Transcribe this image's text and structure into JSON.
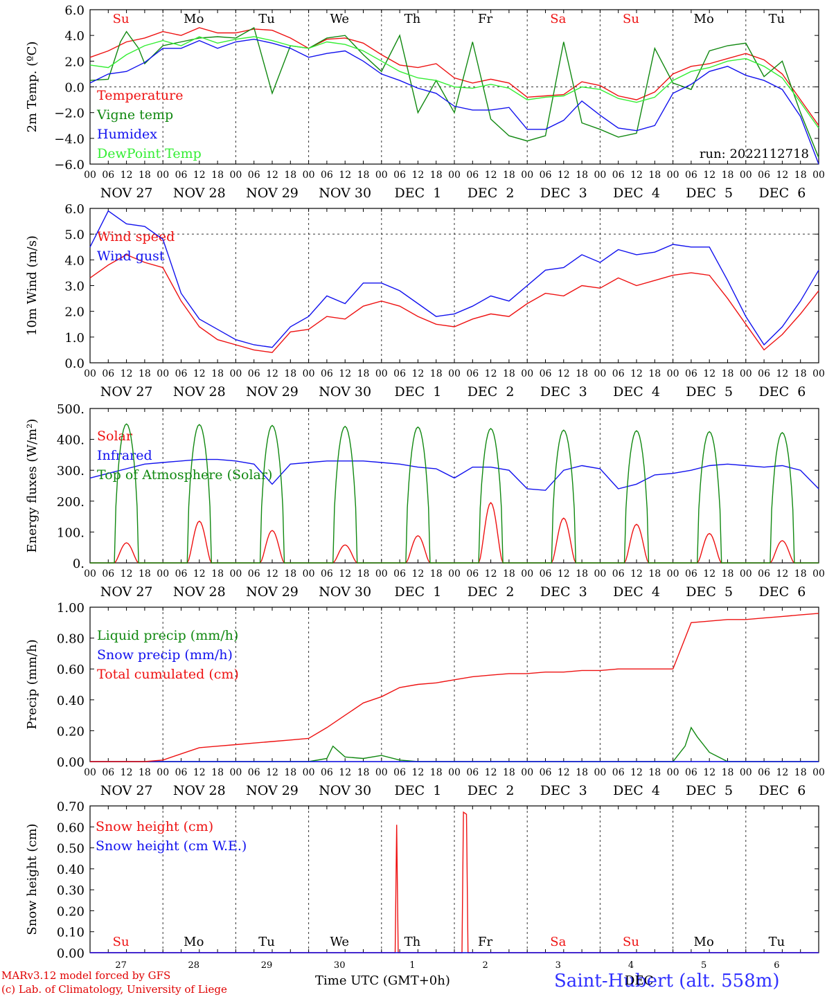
{
  "footer": {
    "credit_line1": "MARv3.12 model forced by GFS",
    "credit_line2": "(c) Lab. of Climatology, University of Liege",
    "time_axis_label": "Time UTC (GMT+0h)",
    "station": "Saint-Hubert (alt. 558m)",
    "month_overlap": "DEC"
  },
  "colors": {
    "red": "#ee1111",
    "green": "#108810",
    "blue": "#1111ee",
    "lightgreen": "#33ee33",
    "grid": "#444444"
  },
  "hour_ticks": [
    "00",
    "06",
    "12",
    "18"
  ],
  "date_labels": [
    "NOV 27",
    "NOV 28",
    "NOV 29",
    "NOV 30",
    "DEC  1",
    "DEC  2",
    "DEC  3",
    "DEC  4",
    "DEC  5",
    "DEC  6"
  ],
  "day_labels": [
    {
      "text": "Su",
      "color": "red"
    },
    {
      "text": "Mo",
      "color": "black"
    },
    {
      "text": "Tu",
      "color": "black"
    },
    {
      "text": "We",
      "color": "black"
    },
    {
      "text": "Th",
      "color": "black"
    },
    {
      "text": "Fr",
      "color": "black"
    },
    {
      "text": "Sa",
      "color": "red"
    },
    {
      "text": "Su",
      "color": "red"
    },
    {
      "text": "Mo",
      "color": "black"
    },
    {
      "text": "Tu",
      "color": "black"
    }
  ],
  "day_numbers": [
    "27",
    "28",
    "29",
    "30",
    "1",
    "2",
    "3",
    "4",
    "5",
    "6"
  ],
  "chart_data": [
    {
      "type": "line",
      "ylabel": "2m Temp. (ºC)",
      "ylim": [
        -6,
        6
      ],
      "yticks": [
        "6.0",
        "4.0",
        "2.0",
        "0.0",
        "−2.0",
        "−4.0",
        "−6.0"
      ],
      "ytick_values": [
        6,
        4,
        2,
        0,
        -2,
        -4,
        -6
      ],
      "x_unit": "hours since NOV 27 00 UTC",
      "xlim": [
        0,
        240
      ],
      "run_label": "run: 2022112718",
      "ref_line": 0,
      "series": [
        {
          "name": "Temperature",
          "color": "red",
          "x": [
            0,
            6,
            12,
            18,
            24,
            30,
            36,
            42,
            48,
            54,
            60,
            66,
            72,
            78,
            84,
            90,
            96,
            102,
            108,
            114,
            120,
            126,
            132,
            138,
            144,
            150,
            156,
            162,
            168,
            174,
            180,
            186,
            192,
            198,
            204,
            210,
            216,
            222,
            228,
            234,
            240
          ],
          "y": [
            2.3,
            2.8,
            3.5,
            3.8,
            4.3,
            4.0,
            4.6,
            4.2,
            4.2,
            4.5,
            4.4,
            3.8,
            3.0,
            3.7,
            3.8,
            3.4,
            2.5,
            1.7,
            1.5,
            1.8,
            0.7,
            0.3,
            0.6,
            0.3,
            -0.8,
            -0.7,
            -0.6,
            0.4,
            0.1,
            -0.7,
            -1.0,
            -0.4,
            1.0,
            1.6,
            1.8,
            2.2,
            2.6,
            2.1,
            1.0,
            -1.0,
            -3.0
          ]
        },
        {
          "name": "Vigne temp",
          "color": "green",
          "x": [
            0,
            6,
            10,
            12,
            16,
            18,
            24,
            30,
            36,
            42,
            48,
            54,
            60,
            66,
            72,
            78,
            84,
            90,
            96,
            102,
            108,
            114,
            120,
            126,
            132,
            138,
            144,
            150,
            156,
            162,
            168,
            174,
            180,
            186,
            192,
            198,
            204,
            210,
            216,
            222,
            228,
            234,
            240
          ],
          "y": [
            0.5,
            0.6,
            3.5,
            4.3,
            3.0,
            1.8,
            3.2,
            3.5,
            3.8,
            3.9,
            3.8,
            4.6,
            -0.5,
            3.2,
            3.0,
            3.8,
            4.0,
            2.5,
            1.2,
            4.0,
            -2.0,
            0.5,
            -2.0,
            3.5,
            -2.5,
            -3.8,
            -4.2,
            -3.8,
            3.5,
            -2.8,
            -3.3,
            -3.9,
            -3.6,
            3.0,
            0.3,
            -0.2,
            2.8,
            3.2,
            3.4,
            0.8,
            2.0,
            -2.0,
            -5.5
          ]
        },
        {
          "name": "Humidex",
          "color": "blue",
          "x": [
            0,
            6,
            12,
            18,
            24,
            30,
            36,
            42,
            48,
            54,
            60,
            66,
            72,
            78,
            84,
            90,
            96,
            102,
            108,
            114,
            120,
            126,
            132,
            138,
            144,
            150,
            156,
            162,
            168,
            174,
            180,
            186,
            192,
            198,
            204,
            210,
            216,
            222,
            228,
            234,
            240
          ],
          "y": [
            0.3,
            1.0,
            1.2,
            1.9,
            3.0,
            3.0,
            3.6,
            3.0,
            3.5,
            3.7,
            3.4,
            3.0,
            2.3,
            2.6,
            2.8,
            2.0,
            1.0,
            0.5,
            -0.1,
            -0.5,
            -1.5,
            -1.8,
            -1.8,
            -1.6,
            -3.3,
            -3.3,
            -2.6,
            -1.1,
            -2.2,
            -3.2,
            -3.4,
            -3.0,
            -0.5,
            0.2,
            1.2,
            1.6,
            0.9,
            0.5,
            -0.2,
            -2.3,
            -6.0
          ]
        },
        {
          "name": "DewPoint Temp",
          "color": "lightgreen",
          "x": [
            0,
            6,
            12,
            18,
            24,
            30,
            36,
            42,
            48,
            54,
            60,
            66,
            72,
            78,
            84,
            90,
            96,
            102,
            108,
            114,
            120,
            126,
            132,
            138,
            144,
            150,
            156,
            162,
            168,
            174,
            180,
            186,
            192,
            198,
            204,
            210,
            216,
            222,
            228,
            234,
            240
          ],
          "y": [
            1.7,
            1.5,
            2.5,
            3.2,
            3.6,
            3.2,
            3.9,
            3.4,
            3.7,
            3.9,
            3.6,
            3.2,
            3.0,
            3.5,
            3.3,
            2.8,
            2.0,
            1.2,
            0.7,
            0.5,
            0.0,
            -0.1,
            0.2,
            -0.1,
            -1.0,
            -0.8,
            -0.7,
            0.0,
            -0.2,
            -0.9,
            -1.2,
            -0.8,
            0.5,
            1.2,
            1.5,
            2.0,
            2.2,
            1.6,
            0.7,
            -1.2,
            -3.2
          ]
        }
      ]
    },
    {
      "type": "line",
      "ylabel": "10m Wind (m/s)",
      "ylim": [
        0,
        6
      ],
      "yticks": [
        "6.0",
        "5.0",
        "4.0",
        "3.0",
        "2.0",
        "1.0",
        "0.0"
      ],
      "ytick_values": [
        6,
        5,
        4,
        3,
        2,
        1,
        0
      ],
      "x_unit": "hours since NOV 27 00 UTC",
      "xlim": [
        0,
        240
      ],
      "ref_line": 5,
      "series": [
        {
          "name": "Wind speed",
          "color": "red",
          "x": [
            0,
            6,
            12,
            18,
            24,
            30,
            36,
            42,
            48,
            54,
            60,
            66,
            72,
            78,
            84,
            90,
            96,
            102,
            108,
            114,
            120,
            126,
            132,
            138,
            144,
            150,
            156,
            162,
            168,
            174,
            180,
            186,
            192,
            198,
            204,
            210,
            216,
            222,
            228,
            234,
            240
          ],
          "y": [
            3.3,
            3.8,
            4.2,
            3.9,
            3.7,
            2.4,
            1.4,
            0.9,
            0.7,
            0.5,
            0.4,
            1.2,
            1.3,
            1.8,
            1.7,
            2.2,
            2.4,
            2.2,
            1.8,
            1.5,
            1.4,
            1.7,
            1.9,
            1.8,
            2.3,
            2.7,
            2.6,
            3.0,
            2.9,
            3.3,
            3.0,
            3.2,
            3.4,
            3.5,
            3.4,
            2.5,
            1.5,
            0.5,
            1.1,
            1.9,
            2.8
          ]
        },
        {
          "name": "Wind gust",
          "color": "blue",
          "x": [
            0,
            6,
            12,
            18,
            24,
            30,
            36,
            42,
            48,
            54,
            60,
            66,
            72,
            78,
            84,
            90,
            96,
            102,
            108,
            114,
            120,
            126,
            132,
            138,
            144,
            150,
            156,
            162,
            168,
            174,
            180,
            186,
            192,
            198,
            204,
            210,
            216,
            222,
            228,
            234,
            240
          ],
          "y": [
            4.5,
            5.9,
            5.4,
            5.3,
            4.8,
            2.7,
            1.7,
            1.3,
            0.9,
            0.7,
            0.6,
            1.4,
            1.8,
            2.6,
            2.3,
            3.1,
            3.1,
            2.8,
            2.3,
            1.8,
            1.9,
            2.2,
            2.6,
            2.4,
            3.0,
            3.6,
            3.7,
            4.2,
            3.9,
            4.4,
            4.2,
            4.3,
            4.6,
            4.5,
            4.5,
            3.2,
            1.8,
            0.7,
            1.4,
            2.4,
            3.6
          ]
        }
      ]
    },
    {
      "type": "line",
      "ylabel": "Energy fluxes (W/m²)",
      "ylim": [
        0,
        500
      ],
      "yticks": [
        "500.",
        "400.",
        "300.",
        "200.",
        "100.",
        "0."
      ],
      "ytick_values": [
        500,
        400,
        300,
        200,
        100,
        0
      ],
      "x_unit": "hours since NOV 27 00 UTC",
      "xlim": [
        0,
        240
      ],
      "series": [
        {
          "name": "Solar",
          "color": "red",
          "diurnal_peaks": [
            65,
            135,
            105,
            58,
            88,
            195,
            145,
            125,
            95,
            72
          ]
        },
        {
          "name": "Infrared",
          "color": "blue",
          "x": [
            0,
            6,
            12,
            18,
            24,
            30,
            36,
            42,
            48,
            54,
            60,
            66,
            72,
            78,
            84,
            90,
            96,
            102,
            108,
            114,
            120,
            126,
            132,
            138,
            144,
            150,
            156,
            162,
            168,
            174,
            180,
            186,
            192,
            198,
            204,
            210,
            216,
            222,
            228,
            234,
            240
          ],
          "y": [
            275,
            290,
            305,
            320,
            325,
            330,
            335,
            335,
            330,
            320,
            255,
            320,
            325,
            330,
            330,
            330,
            325,
            320,
            310,
            305,
            275,
            310,
            310,
            300,
            240,
            235,
            300,
            315,
            305,
            240,
            255,
            285,
            290,
            300,
            315,
            320,
            315,
            310,
            315,
            300,
            240
          ]
        },
        {
          "name": "Top of Atmosphere (Solar)",
          "color": "green",
          "diurnal_peaks": [
            450,
            448,
            445,
            442,
            440,
            435,
            430,
            428,
            425,
            422
          ]
        }
      ],
      "diurnal_window_hours": [
        8,
        16
      ]
    },
    {
      "type": "line",
      "ylabel": "Precip (mm/h)",
      "ylim": [
        0,
        1
      ],
      "yticks": [
        "1.00",
        "0.80",
        "0.60",
        "0.40",
        "0.20",
        "0.00"
      ],
      "ytick_values": [
        1,
        0.8,
        0.6,
        0.4,
        0.2,
        0
      ],
      "x_unit": "hours since NOV 27 00 UTC",
      "xlim": [
        0,
        240
      ],
      "series": [
        {
          "name": "Liquid precip (mm/h)",
          "color": "green",
          "x": [
            0,
            72,
            78,
            80,
            84,
            90,
            96,
            102,
            108,
            120,
            192,
            196,
            198,
            200,
            204,
            210,
            240
          ],
          "y": [
            0.0,
            0.0,
            0.02,
            0.1,
            0.03,
            0.02,
            0.04,
            0.01,
            0.0,
            0.0,
            0.0,
            0.1,
            0.22,
            0.16,
            0.06,
            0.0,
            0.0
          ]
        },
        {
          "name": "Snow precip (mm/h)",
          "color": "blue",
          "x": [
            0,
            240
          ],
          "y": [
            0,
            0
          ]
        },
        {
          "name": "Total cumulated (cm)",
          "color": "red",
          "x": [
            0,
            18,
            24,
            30,
            36,
            42,
            48,
            54,
            60,
            66,
            72,
            78,
            84,
            90,
            96,
            102,
            108,
            114,
            120,
            126,
            132,
            138,
            144,
            150,
            156,
            162,
            168,
            174,
            180,
            186,
            192,
            195,
            198,
            204,
            210,
            216,
            222,
            228,
            234,
            240
          ],
          "y": [
            0.0,
            0.0,
            0.01,
            0.05,
            0.09,
            0.1,
            0.11,
            0.12,
            0.13,
            0.14,
            0.15,
            0.22,
            0.3,
            0.38,
            0.42,
            0.48,
            0.5,
            0.51,
            0.53,
            0.55,
            0.56,
            0.57,
            0.57,
            0.58,
            0.58,
            0.59,
            0.59,
            0.6,
            0.6,
            0.6,
            0.6,
            0.75,
            0.9,
            0.91,
            0.92,
            0.92,
            0.93,
            0.94,
            0.95,
            0.96
          ]
        }
      ]
    },
    {
      "type": "line",
      "ylabel": "Snow height (cm)",
      "ylim": [
        0,
        0.7
      ],
      "yticks": [
        "0.70",
        "0.60",
        "0.50",
        "0.40",
        "0.30",
        "0.20",
        "0.10",
        "0.00"
      ],
      "ytick_values": [
        0.7,
        0.6,
        0.5,
        0.4,
        0.3,
        0.2,
        0.1,
        0
      ],
      "x_unit": "hours since NOV 27 00 UTC",
      "xlim": [
        0,
        240
      ],
      "series": [
        {
          "name": "Snow height (cm)",
          "color": "red",
          "x": [
            0,
            100.5,
            101,
            101.5,
            122.5,
            123,
            124,
            124.5,
            240
          ],
          "y": [
            0,
            0,
            0.61,
            0,
            0,
            0.67,
            0.66,
            0,
            0
          ]
        },
        {
          "name": "Snow height (cm W.E.)",
          "color": "blue",
          "x": [
            0,
            240
          ],
          "y": [
            0,
            0
          ]
        }
      ]
    }
  ]
}
